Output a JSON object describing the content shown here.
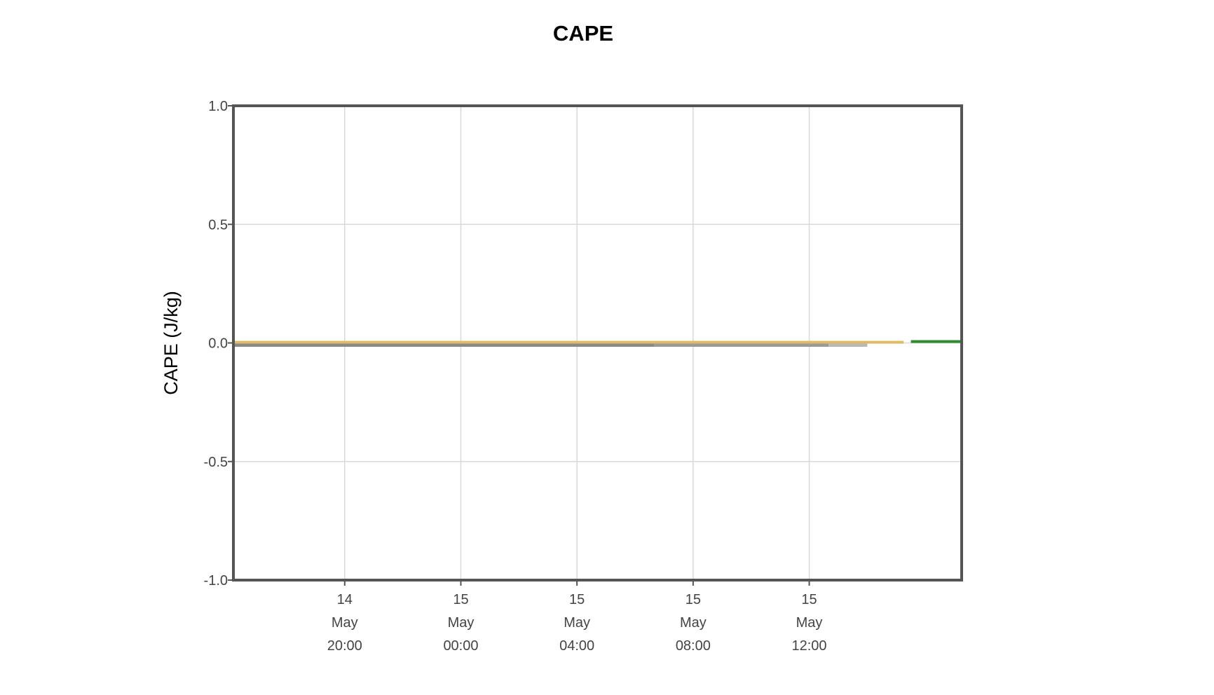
{
  "chart_data": {
    "type": "line",
    "title": "CAPE",
    "xlabel": "",
    "ylabel": "CAPE (J/kg)",
    "ylim": [
      -1.0,
      1.0
    ],
    "yticks": [
      1.0,
      0.5,
      0.0,
      -0.5,
      -1.0
    ],
    "ytick_labels": [
      "1.0",
      "0.5",
      "0.0",
      "-0.5",
      "-1.0"
    ],
    "xlim": [
      "2024-05-14T16:10",
      "2024-05-15T17:15"
    ],
    "xticks": [
      {
        "value": "2024-05-14T20:00",
        "lines": [
          "14",
          "May",
          "20:00"
        ]
      },
      {
        "value": "2024-05-15T00:00",
        "lines": [
          "15",
          "May",
          "00:00"
        ]
      },
      {
        "value": "2024-05-15T04:00",
        "lines": [
          "15",
          "May",
          "04:00"
        ]
      },
      {
        "value": "2024-05-15T08:00",
        "lines": [
          "15",
          "May",
          "08:00"
        ]
      },
      {
        "value": "2024-05-15T12:00",
        "lines": [
          "15",
          "May",
          "12:00"
        ]
      }
    ],
    "grid": true,
    "series": [
      {
        "color": "#8a8a8a",
        "x": [
          "2024-05-14T16:10",
          "2024-05-15T06:40"
        ],
        "y": [
          0,
          0
        ]
      },
      {
        "color": "#9a9a9a",
        "x": [
          "2024-05-15T06:40",
          "2024-05-15T12:40"
        ],
        "y": [
          0,
          0
        ]
      },
      {
        "color": "#b8b8b8",
        "x": [
          "2024-05-15T12:40",
          "2024-05-15T14:00"
        ],
        "y": [
          0,
          0
        ]
      },
      {
        "color": "#e0bb66",
        "x": [
          "2024-05-14T16:10",
          "2024-05-15T15:15"
        ],
        "y": [
          0,
          0
        ]
      },
      {
        "color": "#2e8b2e",
        "x": [
          "2024-05-15T15:30",
          "2024-05-15T17:15"
        ],
        "y": [
          0,
          0
        ]
      }
    ]
  }
}
